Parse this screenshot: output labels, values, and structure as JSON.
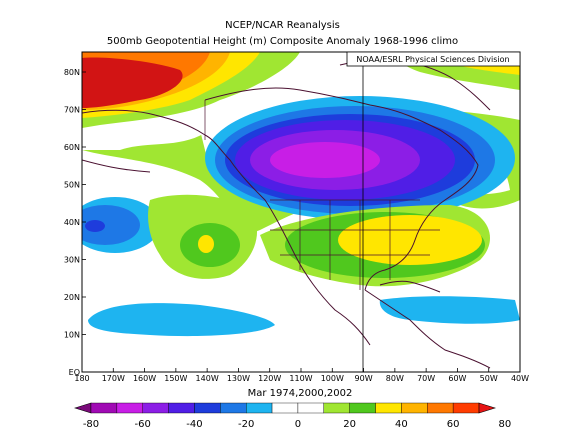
{
  "title": "NCEP/NCAR Reanalysis",
  "subtitle": "500mb Geopotential Height (m) Composite Anomaly 1968-1996 climo",
  "credit": "NOAA/ESRL Physical Sciences Division",
  "dates_label": "Mar 1974,2000,2002",
  "lat_ticks": [
    "80N",
    "70N",
    "60N",
    "50N",
    "40N",
    "30N",
    "20N",
    "10N",
    "EQ"
  ],
  "lon_ticks": [
    "180",
    "170W",
    "160W",
    "150W",
    "140W",
    "130W",
    "120W",
    "110W",
    "100W",
    "90W",
    "80W",
    "70W",
    "60W",
    "50W",
    "40W"
  ],
  "colorbar": {
    "ticks": [
      "-80",
      "-60",
      "-40",
      "-20",
      "0",
      "20",
      "40",
      "60",
      "80"
    ],
    "colors": [
      "#7a0a7a",
      "#a00ab4",
      "#c81ee6",
      "#8c1ee6",
      "#501ee6",
      "#1e3cdc",
      "#1e78e6",
      "#1eb4f0",
      "#ffffff",
      "#ffffff",
      "#a0e632",
      "#50c81e",
      "#ffe600",
      "#ffb400",
      "#ff7800",
      "#ff3c00",
      "#e61414"
    ]
  }
}
